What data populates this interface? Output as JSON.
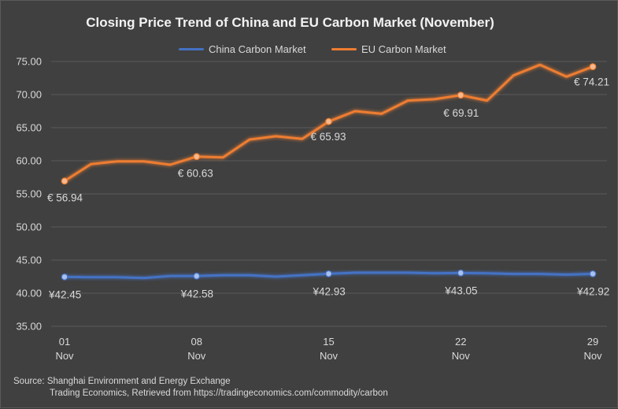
{
  "chart_data": {
    "type": "line",
    "title": "Closing Price Trend of China and EU Carbon Market (November)",
    "xlabel": "",
    "ylabel": "",
    "ylim": [
      35,
      75
    ],
    "yticks": [
      "35.00",
      "40.00",
      "45.00",
      "50.00",
      "55.00",
      "60.00",
      "65.00",
      "70.00",
      "75.00"
    ],
    "ytick_values": [
      35,
      40,
      45,
      50,
      55,
      60,
      65,
      70,
      75
    ],
    "x": [
      1,
      2,
      3,
      4,
      5,
      6,
      7,
      8,
      9,
      10,
      11,
      12,
      13,
      14,
      15,
      16,
      17,
      18,
      19,
      20,
      21
    ],
    "xticks": [
      {
        "index": 0,
        "day": "01",
        "month": "Nov"
      },
      {
        "index": 5,
        "day": "08",
        "month": "Nov"
      },
      {
        "index": 10,
        "day": "15",
        "month": "Nov"
      },
      {
        "index": 15,
        "day": "22",
        "month": "Nov"
      },
      {
        "index": 20,
        "day": "29",
        "month": "Nov"
      }
    ],
    "legend_position": "top",
    "grid": "horizontal",
    "series": [
      {
        "name": "China Carbon Market",
        "color": "#4472c4",
        "values": [
          42.45,
          42.4,
          42.4,
          42.3,
          42.6,
          42.58,
          42.7,
          42.7,
          42.5,
          42.7,
          42.93,
          43.1,
          43.1,
          43.1,
          43.0,
          43.05,
          43.0,
          42.9,
          42.9,
          42.8,
          42.92
        ],
        "labeled": [
          0,
          5,
          10,
          15,
          20
        ],
        "labels": [
          "¥42.45",
          "¥42.58",
          "¥42.93",
          "¥43.05",
          "¥42.92"
        ]
      },
      {
        "name": "EU Carbon Market",
        "color": "#ed7d31",
        "values": [
          56.94,
          59.5,
          59.9,
          59.9,
          59.4,
          60.63,
          60.5,
          63.2,
          63.7,
          63.3,
          65.93,
          67.5,
          67.1,
          69.1,
          69.3,
          69.91,
          69.1,
          72.9,
          74.5,
          72.7,
          74.21
        ],
        "labeled": [
          0,
          5,
          10,
          15,
          20
        ],
        "labels": [
          "€ 56.94",
          "€ 60.63",
          "€ 65.93",
          "€ 69.91",
          "€ 74.21"
        ]
      }
    ]
  },
  "source": {
    "line1": "Source: Shanghai Environment and Energy Exchange",
    "line2": "Trading Economics, Retrieved from https://tradingeconomics.com/commodity/carbon"
  }
}
